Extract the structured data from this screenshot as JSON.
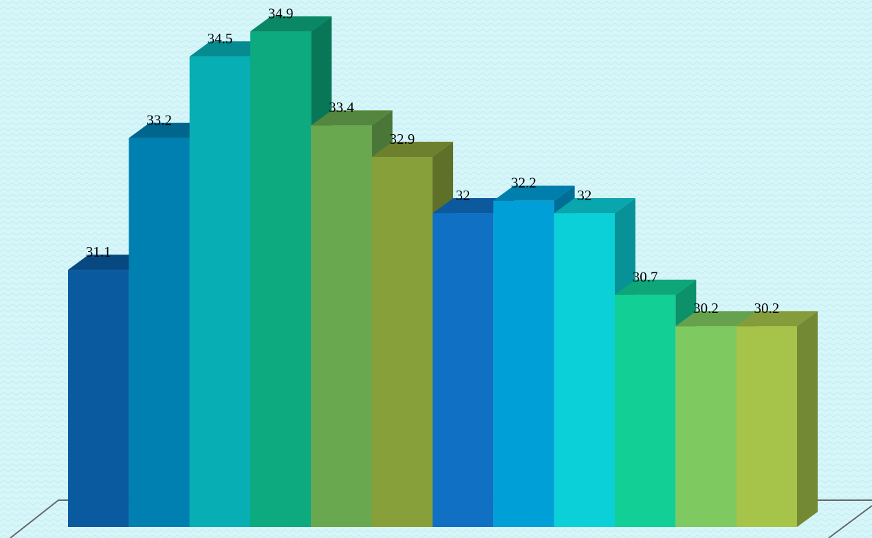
{
  "chart_data": {
    "type": "bar3d",
    "values": [
      31.1,
      33.2,
      34.5,
      34.9,
      33.4,
      32.9,
      32,
      32.2,
      32,
      30.7,
      30.2,
      30.2
    ],
    "colors": [
      "#0a5aa0",
      "#0080b0",
      "#07aeb4",
      "#0caa7e",
      "#6aa84f",
      "#88a03a",
      "#0f70c4",
      "#009fd8",
      "#0bd0d8",
      "#12cf96",
      "#7fca60",
      "#a6c34a"
    ],
    "ylim": [
      27,
      35.4
    ]
  }
}
